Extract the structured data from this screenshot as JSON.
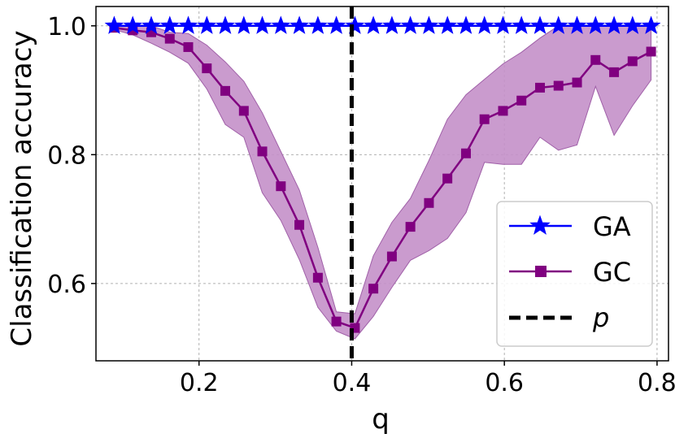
{
  "chart_data": {
    "type": "line",
    "xlabel": "q",
    "ylabel": "Classification accuracy",
    "xlim": [
      0.065,
      0.815
    ],
    "ylim": [
      0.48,
      1.03
    ],
    "x_ticks": [
      "0.2",
      "0.4",
      "0.6",
      "0.8"
    ],
    "y_ticks": [
      "0.6",
      "0.8",
      "1.0"
    ],
    "grid": true,
    "legend_placement": "lower-right",
    "x": [
      0.0889,
      0.1132,
      0.1374,
      0.1617,
      0.1859,
      0.2102,
      0.2344,
      0.2587,
      0.2829,
      0.3072,
      0.3314,
      0.3557,
      0.3799,
      0.4042,
      0.4284,
      0.4527,
      0.4769,
      0.5012,
      0.5254,
      0.5497,
      0.5739,
      0.5982,
      0.6224,
      0.6467,
      0.6709,
      0.6952,
      0.7194,
      0.7437,
      0.7679,
      0.7922
    ],
    "series": [
      {
        "name": "GA",
        "color": "#0000ff",
        "marker": "star",
        "values": [
          1.0,
          1.0,
          1.0,
          1.0,
          1.0,
          1.0,
          1.0,
          1.0,
          1.0,
          1.0,
          1.0,
          1.0,
          1.0,
          1.0,
          1.0,
          1.0,
          1.0,
          1.0,
          1.0,
          1.0,
          1.0,
          1.0,
          1.0,
          1.0,
          1.0,
          1.0,
          1.0,
          1.0,
          1.0,
          1.0
        ]
      },
      {
        "name": "GC",
        "color": "#800080",
        "marker": "square",
        "band_color": "#c490c9",
        "values": [
          0.997,
          0.993,
          0.99,
          0.98,
          0.967,
          0.934,
          0.899,
          0.868,
          0.805,
          0.751,
          0.691,
          0.609,
          0.541,
          0.531,
          0.592,
          0.642,
          0.688,
          0.725,
          0.763,
          0.802,
          0.855,
          0.868,
          0.884,
          0.904,
          0.907,
          0.912,
          0.947,
          0.928,
          0.945,
          0.96
        ],
        "band_upper": [
          1.0,
          1.0,
          1.0,
          0.99,
          0.988,
          0.97,
          0.944,
          0.914,
          0.865,
          0.805,
          0.745,
          0.656,
          0.556,
          0.553,
          0.643,
          0.695,
          0.732,
          0.791,
          0.855,
          0.893,
          0.917,
          0.941,
          0.959,
          0.981,
          1.0,
          1.0,
          1.0,
          1.0,
          1.0,
          1.0
        ],
        "band_lower": [
          0.994,
          0.986,
          0.973,
          0.959,
          0.942,
          0.902,
          0.847,
          0.827,
          0.741,
          0.698,
          0.637,
          0.563,
          0.526,
          0.514,
          0.549,
          0.594,
          0.636,
          0.651,
          0.67,
          0.71,
          0.788,
          0.785,
          0.785,
          0.827,
          0.807,
          0.815,
          0.906,
          0.83,
          0.876,
          0.916
        ]
      },
      {
        "name": "p",
        "type": "vline",
        "color": "#000000",
        "style": "dashed",
        "x_value": 0.4
      }
    ]
  }
}
